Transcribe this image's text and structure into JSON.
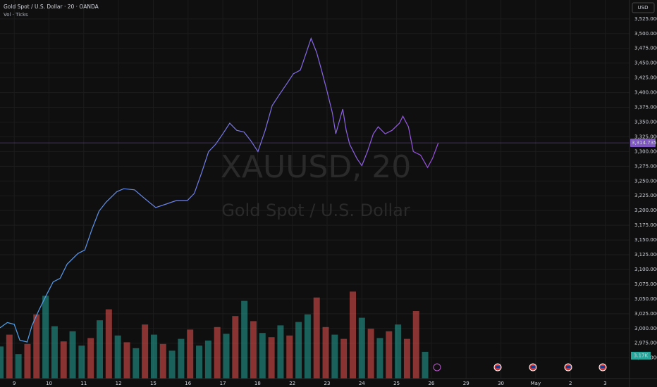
{
  "header": {
    "symbol_title": "Gold Spot / U.S. Dollar · 20 · OANDA",
    "indicator": "Vol · Ticks",
    "currency": "USD",
    "watermark_symbol": "XAUUSD, 20",
    "watermark_name": "Gold Spot / U.S. Dollar"
  },
  "chart_data": {
    "type": "line",
    "x": [
      -0.41,
      -0.2,
      0,
      0.16,
      0.37,
      0.51,
      0.71,
      0.91,
      1.12,
      1.32,
      1.52,
      1.83,
      2.03,
      2.24,
      2.44,
      2.64,
      2.95,
      3.15,
      3.46,
      3.76,
      4.07,
      4.37,
      4.67,
      4.98,
      5.18,
      5.39,
      5.59,
      5.79,
      6.0,
      6.2,
      6.4,
      6.61,
      6.81,
      7.01,
      7.22,
      7.42,
      7.62,
      7.83,
      8.03,
      8.23,
      8.37,
      8.54,
      8.7,
      8.84,
      9.0,
      9.15,
      9.25,
      9.45,
      9.55,
      9.65,
      9.86,
      10.0,
      10.16,
      10.33,
      10.47,
      10.67,
      10.87,
      11.08,
      11.18,
      11.34,
      11.48,
      11.69,
      11.89,
      12.03,
      12.2
    ],
    "values": [
      3001,
      3010,
      3007,
      2980,
      2977,
      3005,
      3031,
      3055,
      3079,
      3085,
      3109,
      3127,
      3133,
      3169,
      3199,
      3214,
      3232,
      3237,
      3235,
      3220,
      3205,
      3211,
      3217,
      3217,
      3229,
      3264,
      3300,
      3312,
      3330,
      3348,
      3336,
      3333,
      3318,
      3300,
      3336,
      3378,
      3396,
      3414,
      3432,
      3438,
      3462,
      3492,
      3468,
      3438,
      3402,
      3366,
      3330,
      3372,
      3336,
      3312,
      3288,
      3276,
      3300,
      3330,
      3342,
      3330,
      3336,
      3348,
      3360,
      3342,
      3300,
      3294,
      3273,
      3288,
      3314.735
    ],
    "line_colors": [
      "#4ea5ee",
      "#9c4fe0"
    ],
    "last_price": {
      "value": 3314.735,
      "label": "3,314.735"
    },
    "last_price_color": "#7e57c2",
    "xlim": [
      -0.41,
      17.7
    ],
    "xticks": [
      {
        "value": 0,
        "label": "9"
      },
      {
        "value": 1,
        "label": "10"
      },
      {
        "value": 2,
        "label": "11"
      },
      {
        "value": 3,
        "label": "12"
      },
      {
        "value": 4,
        "label": "15"
      },
      {
        "value": 5,
        "label": "16"
      },
      {
        "value": 6,
        "label": "17"
      },
      {
        "value": 7,
        "label": "18"
      },
      {
        "value": 8,
        "label": "22"
      },
      {
        "value": 9,
        "label": "23"
      },
      {
        "value": 10,
        "label": "24"
      },
      {
        "value": 11,
        "label": "25"
      },
      {
        "value": 12,
        "label": "26"
      },
      {
        "value": 13,
        "label": "29"
      },
      {
        "value": 14,
        "label": "30"
      },
      {
        "value": 15,
        "label": "May"
      },
      {
        "value": 16,
        "label": "2"
      },
      {
        "value": 17,
        "label": "3"
      }
    ],
    "ylim": [
      2915,
      3557
    ],
    "yticks": [
      {
        "value": 2950,
        "label": "2,950.000"
      },
      {
        "value": 2975,
        "label": "2,975.000"
      },
      {
        "value": 3000,
        "label": "3,000.000"
      },
      {
        "value": 3025,
        "label": "3,025.000"
      },
      {
        "value": 3050,
        "label": "3,050.000"
      },
      {
        "value": 3075,
        "label": "3,075.000"
      },
      {
        "value": 3100,
        "label": "3,100.000"
      },
      {
        "value": 3125,
        "label": "3,125.000"
      },
      {
        "value": 3150,
        "label": "3,150.000"
      },
      {
        "value": 3175,
        "label": "3,175.000"
      },
      {
        "value": 3200,
        "label": "3,200.000"
      },
      {
        "value": 3225,
        "label": "3,225.000"
      },
      {
        "value": 3250,
        "label": "3,250.000"
      },
      {
        "value": 3275,
        "label": "3,275.000"
      },
      {
        "value": 3300,
        "label": "3,300.000"
      },
      {
        "value": 3325,
        "label": "3,325.000"
      },
      {
        "value": 3350,
        "label": "3,350.000"
      },
      {
        "value": 3375,
        "label": "3,375.000"
      },
      {
        "value": 3400,
        "label": "3,400.000"
      },
      {
        "value": 3425,
        "label": "3,425.000"
      },
      {
        "value": 3450,
        "label": "3,450.000"
      },
      {
        "value": 3475,
        "label": "3,475.000"
      },
      {
        "value": 3500,
        "label": "3,500.000"
      },
      {
        "value": 3525,
        "label": "3,525.000"
      }
    ],
    "grid": true,
    "volume": {
      "x": [
        -0.4,
        -0.14,
        0.12,
        0.38,
        0.64,
        0.9,
        1.16,
        1.42,
        1.68,
        1.94,
        2.2,
        2.46,
        2.72,
        2.98,
        3.24,
        3.5,
        3.76,
        4.02,
        4.28,
        4.54,
        4.8,
        5.06,
        5.32,
        5.58,
        5.84,
        6.1,
        6.36,
        6.62,
        6.88,
        7.14,
        7.4,
        7.66,
        7.92,
        8.18,
        8.44,
        8.7,
        8.96,
        9.22,
        9.48,
        9.74,
        10.0,
        10.26,
        10.52,
        10.78,
        11.04,
        11.3,
        11.56,
        11.82
      ],
      "values": [
        3800,
        5200,
        2900,
        4100,
        7600,
        9800,
        6200,
        4400,
        5600,
        3900,
        4800,
        6900,
        8200,
        5100,
        4300,
        3600,
        6400,
        5200,
        4100,
        3300,
        4700,
        5800,
        3900,
        4500,
        6100,
        5300,
        7400,
        9200,
        6800,
        5400,
        4900,
        6300,
        5100,
        6700,
        7600,
        9600,
        6100,
        5200,
        4700,
        10300,
        7200,
        5900,
        4800,
        5600,
        6400,
        4700,
        8000,
        3170
      ],
      "colors": [
        "#26a69a",
        "#ef5350",
        "#26a69a",
        "#ef5350",
        "#ef5350",
        "#26a69a",
        "#26a69a",
        "#ef5350",
        "#26a69a",
        "#26a69a",
        "#ef5350",
        "#26a69a",
        "#ef5350",
        "#26a69a",
        "#ef5350",
        "#26a69a",
        "#ef5350",
        "#26a69a",
        "#ef5350",
        "#26a69a",
        "#26a69a",
        "#ef5350",
        "#26a69a",
        "#26a69a",
        "#ef5350",
        "#26a69a",
        "#ef5350",
        "#26a69a",
        "#ef5350",
        "#26a69a",
        "#ef5350",
        "#26a69a",
        "#ef5350",
        "#26a69a",
        "#26a69a",
        "#ef5350",
        "#ef5350",
        "#26a69a",
        "#ef5350",
        "#ef5350",
        "#26a69a",
        "#ef5350",
        "#26a69a",
        "#ef5350",
        "#26a69a",
        "#ef5350",
        "#ef5350",
        "#26a69a"
      ],
      "y2lim": [
        0,
        20000
      ],
      "last_label": "3.17K"
    }
  }
}
